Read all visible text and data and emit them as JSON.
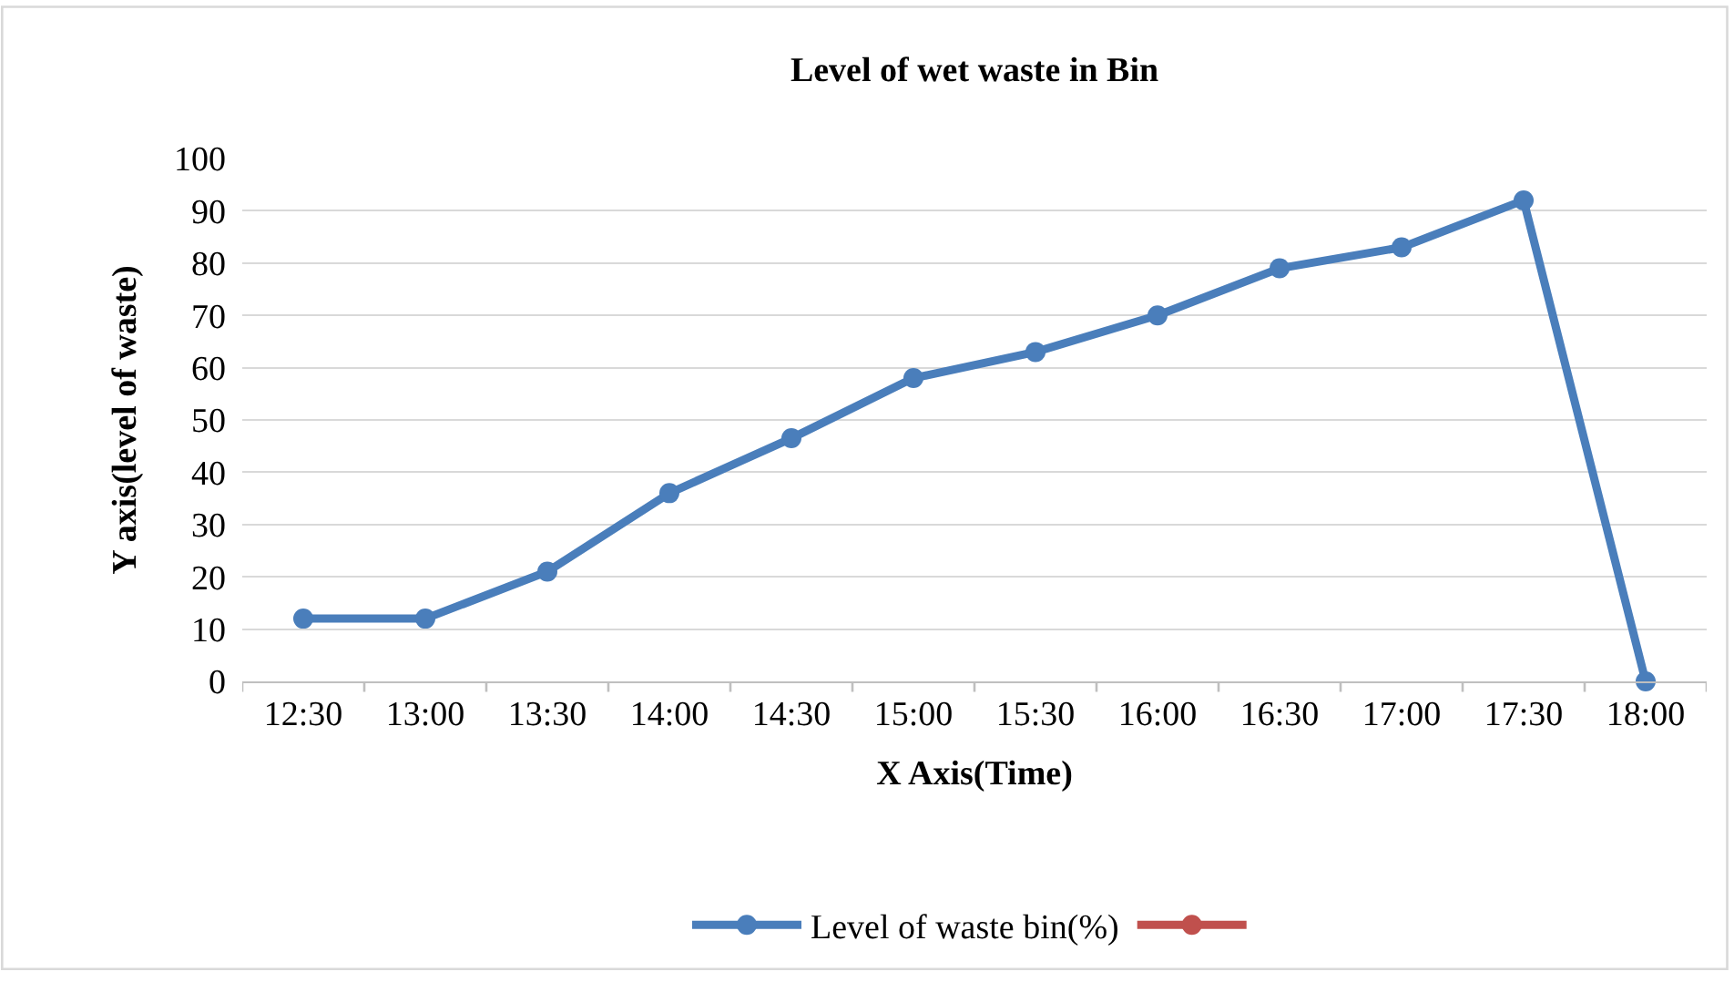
{
  "chart_data": {
    "type": "line",
    "title": "Level of wet waste in Bin",
    "xlabel": "X Axis(Time)",
    "ylabel": "Y axis(level of waste)",
    "categories": [
      "12:30",
      "13:00",
      "13:30",
      "14:00",
      "14:30",
      "15:00",
      "15:30",
      "16:00",
      "16:30",
      "17:00",
      "17:30",
      "18:00"
    ],
    "series": [
      {
        "name": "Level of waste bin(%)",
        "color": "#4a7ebb",
        "values": [
          12,
          12,
          21,
          36,
          46.5,
          58,
          63,
          70,
          79,
          83,
          92,
          0
        ]
      },
      {
        "color": "#c0504d",
        "values": [
          null,
          null,
          null,
          null,
          null,
          null,
          null,
          null,
          null,
          null,
          null,
          null
        ]
      }
    ],
    "ylim": [
      0,
      100
    ],
    "yticks": [
      0,
      10,
      20,
      30,
      40,
      50,
      60,
      70,
      80,
      90,
      100
    ],
    "grid": "y",
    "legend": "bottom",
    "marker": "circle",
    "line_style": "solid"
  }
}
